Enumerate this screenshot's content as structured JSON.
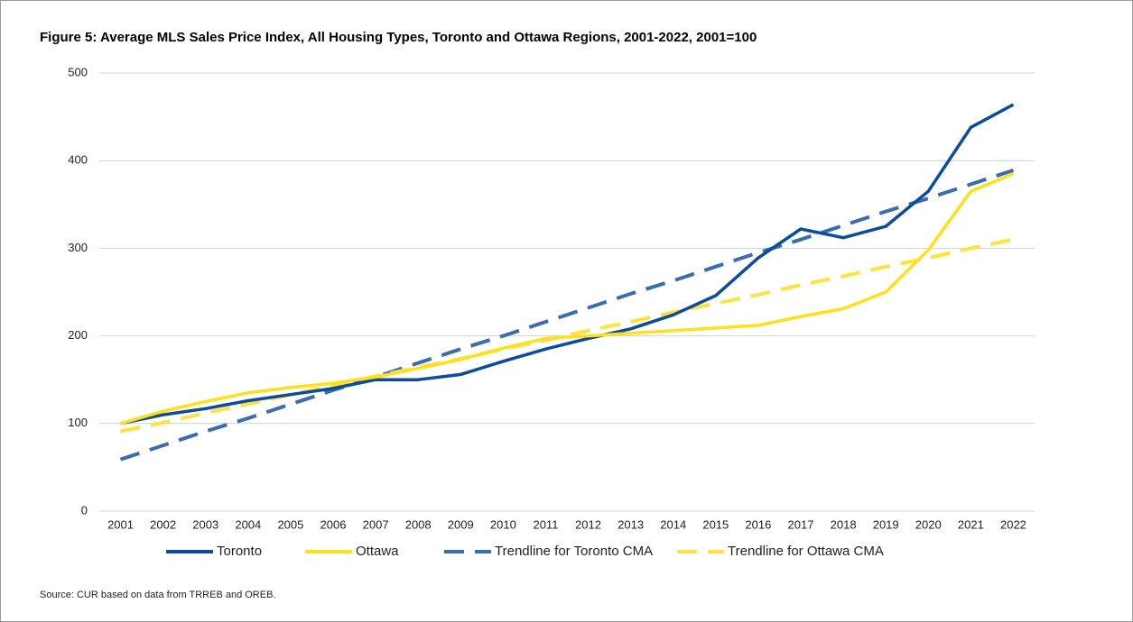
{
  "chart_data": {
    "type": "line",
    "title": "Figure 5: Average MLS Sales Price Index, All Housing Types, Toronto and Ottawa Regions, 2001-2022, 2001=100",
    "source": "Source: CUR based on data from TRREB and OREB.",
    "categories": [
      "2001",
      "2002",
      "2003",
      "2004",
      "2005",
      "2006",
      "2007",
      "2008",
      "2009",
      "2010",
      "2011",
      "2012",
      "2013",
      "2014",
      "2015",
      "2016",
      "2017",
      "2018",
      "2019",
      "2020",
      "2021",
      "2022"
    ],
    "ylim": [
      0,
      500
    ],
    "yticks": [
      0,
      100,
      200,
      300,
      400,
      500
    ],
    "grid": true,
    "legend": "bottom",
    "series": [
      {
        "name": "Toronto",
        "color": "#0b4c9f",
        "dashed": false,
        "values": [
          100,
          110,
          117,
          126,
          133,
          140,
          150,
          150,
          156,
          171,
          185,
          197,
          208,
          224,
          246,
          289,
          322,
          312,
          325,
          365,
          438,
          464
        ]
      },
      {
        "name": "Ottawa",
        "color": "#ffe01b",
        "dashed": false,
        "values": [
          100,
          114,
          125,
          135,
          141,
          146,
          153,
          163,
          173,
          186,
          197,
          200,
          203,
          206,
          209,
          212,
          222,
          231,
          250,
          298,
          365,
          385
        ]
      },
      {
        "name": "Trendline for Toronto CMA",
        "color": "#3b6cb0",
        "dashed": true,
        "values": [
          59,
          75,
          91,
          106,
          122,
          138,
          153,
          169,
          185,
          200,
          216,
          232,
          248,
          263,
          279,
          295,
          310,
          326,
          342,
          357,
          373,
          389
        ]
      },
      {
        "name": "Trendline for Ottawa CMA",
        "color": "#ffe23d",
        "dashed": true,
        "values": [
          91,
          101,
          112,
          122,
          133,
          143,
          154,
          164,
          174,
          185,
          195,
          206,
          216,
          227,
          237,
          247,
          258,
          268,
          279,
          289,
          300,
          310
        ]
      }
    ]
  }
}
